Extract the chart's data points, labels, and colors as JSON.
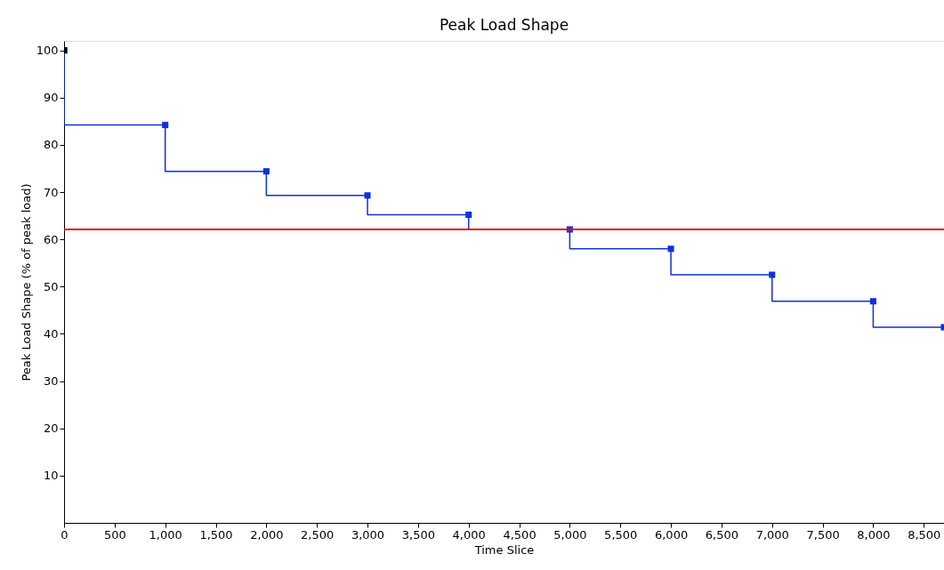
{
  "chart_data": {
    "type": "step",
    "title": "Peak Load Shape",
    "xlabel": "Time Slice",
    "ylabel": "Peak Load Shape (% of peak load)",
    "series": [
      {
        "color": "#1030d8",
        "x": [
          0,
          1000,
          2000,
          3000,
          4000,
          5000,
          6000,
          7000,
          8000,
          8700
        ],
        "values": [
          100,
          84.2,
          74.4,
          69.3,
          65.2,
          62.1,
          58.0,
          52.5,
          46.9,
          41.4
        ]
      },
      {
        "type": "scatter",
        "color": "#000000",
        "x": [
          0
        ],
        "values": [
          100
        ]
      }
    ],
    "ref_lines": [
      {
        "axis": "y",
        "value": 62.1,
        "color": "#e01010"
      }
    ],
    "xlim": [
      0,
      8700
    ],
    "xticks": [
      {
        "value": 0,
        "label": "0"
      },
      {
        "value": 500,
        "label": "500"
      },
      {
        "value": 1000,
        "label": "1,000"
      },
      {
        "value": 1500,
        "label": "1,500"
      },
      {
        "value": 2000,
        "label": "2,000"
      },
      {
        "value": 2500,
        "label": "2,500"
      },
      {
        "value": 3000,
        "label": "3,000"
      },
      {
        "value": 3500,
        "label": "3,500"
      },
      {
        "value": 4000,
        "label": "4,000"
      },
      {
        "value": 4500,
        "label": "4,500"
      },
      {
        "value": 5000,
        "label": "5,000"
      },
      {
        "value": 5500,
        "label": "5,500"
      },
      {
        "value": 6000,
        "label": "6,000"
      },
      {
        "value": 6500,
        "label": "6,500"
      },
      {
        "value": 7000,
        "label": "7,000"
      },
      {
        "value": 7500,
        "label": "7,500"
      },
      {
        "value": 8000,
        "label": "8,000"
      },
      {
        "value": 8500,
        "label": "8,500"
      }
    ],
    "ylim": [
      0,
      102
    ],
    "yticks": [
      10,
      20,
      30,
      40,
      50,
      60,
      70,
      80,
      90,
      100
    ],
    "grid": false,
    "marker": "square",
    "line_style": "solid"
  }
}
